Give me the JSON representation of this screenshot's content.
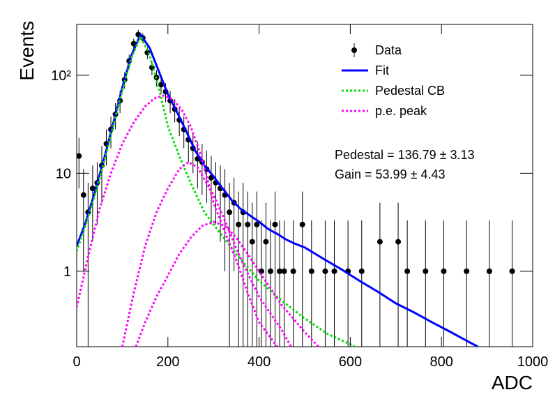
{
  "chart_data": {
    "type": "scatter",
    "x_label": "ADC",
    "y_label": "Events",
    "log_y": true,
    "legend": "top-right",
    "xlim": [
      0,
      1000
    ],
    "xticks": [
      0,
      200,
      400,
      600,
      800,
      1000
    ],
    "ylim": [
      0.17,
      330
    ],
    "yticks": [
      1,
      10,
      {
        "value": 100,
        "label": "10²"
      }
    ],
    "annotations": [
      "Pedestal = 136.79 ± 3.13",
      "Gain = 53.99 ± 4.43"
    ],
    "series": [
      {
        "name": "Data",
        "color": "#000000",
        "x": [
          5,
          15,
          25,
          35,
          45,
          55,
          65,
          75,
          85,
          95,
          105,
          115,
          125,
          135,
          145,
          155,
          165,
          175,
          185,
          195,
          205,
          215,
          225,
          235,
          245,
          255,
          265,
          275,
          285,
          295,
          305,
          315,
          325,
          335,
          345,
          355,
          365,
          375,
          385,
          395,
          405,
          415,
          425,
          435,
          445,
          455,
          475,
          495,
          515,
          545,
          565,
          595,
          625,
          665,
          705,
          725,
          765,
          805,
          855,
          905,
          955
        ],
        "values": [
          15,
          6,
          4,
          7,
          8,
          12,
          20,
          28,
          40,
          55,
          90,
          140,
          210,
          260,
          240,
          170,
          120,
          95,
          80,
          68,
          55,
          45,
          35,
          28,
          22,
          18,
          14,
          13,
          11,
          9,
          8,
          7,
          6,
          4,
          5,
          3,
          4,
          3,
          2,
          3,
          1,
          2,
          1,
          3,
          1,
          1,
          1,
          3,
          1,
          1,
          1,
          1,
          1,
          2,
          2,
          1,
          1,
          1,
          1,
          1,
          1
        ],
        "errors": [
          8,
          5,
          4,
          5,
          5,
          7,
          8,
          10,
          12,
          14,
          17,
          22,
          26,
          30,
          28,
          24,
          20,
          18,
          16,
          15,
          14,
          12,
          11,
          10,
          9,
          8,
          7,
          7,
          6,
          6,
          5,
          5,
          5,
          4,
          4,
          3.5,
          4,
          3.5,
          3,
          3.5,
          2.3,
          3,
          2.3,
          3.5,
          2.3,
          2.3,
          2.3,
          3.5,
          2.3,
          2.3,
          2.3,
          2.3,
          2.3,
          3,
          3,
          2.3,
          2.3,
          2.3,
          2.3,
          2.3,
          2.3
        ]
      },
      {
        "name": "Fit",
        "color": "#0000ff",
        "dashed": false,
        "x": [
          0,
          20,
          40,
          60,
          80,
          100,
          120,
          140,
          160,
          180,
          200,
          220,
          240,
          260,
          280,
          300,
          320,
          340,
          360,
          380,
          400,
          420,
          440,
          460,
          480,
          500,
          540,
          580,
          620,
          660,
          700,
          740,
          780,
          820,
          860,
          880
        ],
        "values": [
          1.8,
          3.2,
          6.5,
          14,
          32,
          75,
          160,
          260,
          190,
          110,
          64,
          42,
          27,
          17,
          12,
          9.3,
          7,
          5.3,
          4.3,
          3.7,
          3.2,
          2.7,
          2.4,
          2.1,
          1.9,
          1.75,
          1.35,
          1.05,
          0.8,
          0.62,
          0.47,
          0.38,
          0.3,
          0.24,
          0.19,
          0.17
        ]
      },
      {
        "name": "Pedestal CB",
        "color": "#00dd00",
        "dashed": true,
        "x": [
          0,
          20,
          40,
          60,
          80,
          100,
          120,
          140,
          160,
          180,
          200,
          225,
          250,
          280,
          300,
          350,
          400,
          450,
          500,
          550,
          600,
          620
        ],
        "values": [
          1.6,
          3,
          6,
          13,
          30,
          70,
          150,
          250,
          160,
          75,
          30,
          15,
          8,
          4,
          3,
          1.5,
          0.8,
          0.5,
          0.33,
          0.23,
          0.18,
          0.16
        ]
      },
      {
        "name": "p.e. peak",
        "color": "#ff00ff",
        "dashed": true,
        "x": [
          0,
          25,
          50,
          75,
          100,
          125,
          150,
          170,
          190,
          210,
          230,
          250,
          275,
          300,
          325,
          350,
          375,
          400,
          440
        ],
        "values": [
          0.43,
          1.4,
          4.3,
          10,
          20,
          33,
          48,
          58,
          62,
          57,
          45,
          30,
          14,
          5,
          2.5,
          1.3,
          0.6,
          0.3,
          0.17
        ]
      },
      {
        "color": "#ff00ff",
        "dashed": true,
        "x": [
          100,
          125,
          150,
          175,
          200,
          225,
          245,
          265,
          300,
          325,
          350,
          375,
          400,
          450,
          470
        ],
        "values": [
          0.17,
          0.6,
          1.8,
          4,
          7,
          11,
          13,
          11.5,
          6,
          3.3,
          1.7,
          0.95,
          0.55,
          0.25,
          0.17
        ]
      },
      {
        "color": "#ff00ff",
        "dashed": true,
        "x": [
          130,
          150,
          175,
          200,
          225,
          250,
          275,
          300,
          325,
          350,
          375,
          400,
          450,
          500,
          530
        ],
        "values": [
          0.17,
          0.3,
          0.55,
          0.9,
          1.5,
          2.2,
          2.9,
          3.2,
          2.9,
          2.2,
          1.5,
          1,
          0.45,
          0.24,
          0.17
        ]
      }
    ]
  }
}
